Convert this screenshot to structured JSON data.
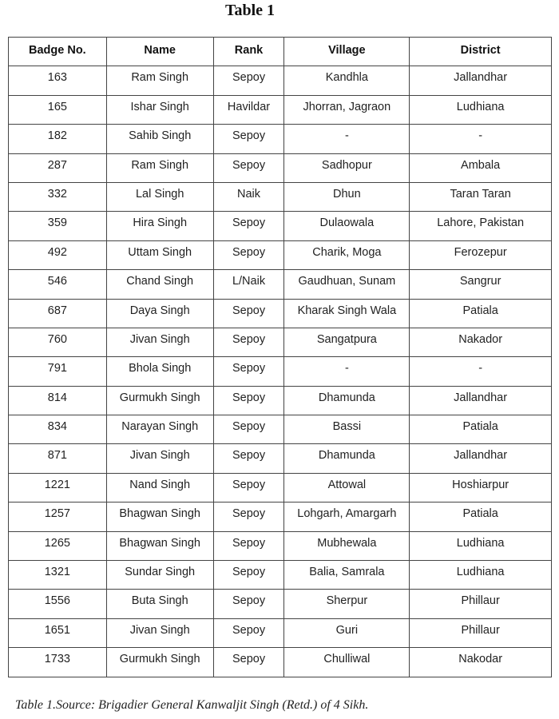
{
  "title": "Table 1",
  "columns": [
    "Badge No.",
    "Name",
    "Rank",
    "Village",
    "District"
  ],
  "rows": [
    [
      "163",
      "Ram Singh",
      "Sepoy",
      "Kandhla",
      "Jallandhar"
    ],
    [
      "165",
      "Ishar Singh",
      "Havildar",
      "Jhorran, Jagraon",
      "Ludhiana"
    ],
    [
      "182",
      "Sahib Singh",
      "Sepoy",
      "-",
      "-"
    ],
    [
      "287",
      "Ram Singh",
      "Sepoy",
      "Sadhopur",
      "Ambala"
    ],
    [
      "332",
      "Lal Singh",
      "Naik",
      "Dhun",
      "Taran Taran"
    ],
    [
      "359",
      "Hira Singh",
      "Sepoy",
      "Dulaowala",
      "Lahore, Pakistan"
    ],
    [
      "492",
      "Uttam Singh",
      "Sepoy",
      "Charik, Moga",
      "Ferozepur"
    ],
    [
      "546",
      "Chand Singh",
      "L/Naik",
      "Gaudhuan, Sunam",
      "Sangrur"
    ],
    [
      "687",
      "Daya Singh",
      "Sepoy",
      "Kharak Singh Wala",
      "Patiala"
    ],
    [
      "760",
      "Jivan Singh",
      "Sepoy",
      "Sangatpura",
      "Nakador"
    ],
    [
      "791",
      "Bhola Singh",
      "Sepoy",
      "-",
      "-"
    ],
    [
      "814",
      "Gurmukh Singh",
      "Sepoy",
      "Dhamunda",
      "Jallandhar"
    ],
    [
      "834",
      "Narayan Singh",
      "Sepoy",
      "Bassi",
      "Patiala"
    ],
    [
      "871",
      "Jivan Singh",
      "Sepoy",
      "Dhamunda",
      "Jallandhar"
    ],
    [
      "1221",
      "Nand Singh",
      "Sepoy",
      "Attowal",
      "Hoshiarpur"
    ],
    [
      "1257",
      "Bhagwan Singh",
      "Sepoy",
      "Lohgarh, Amargarh",
      "Patiala"
    ],
    [
      "1265",
      "Bhagwan Singh",
      "Sepoy",
      "Mubhewala",
      "Ludhiana"
    ],
    [
      "1321",
      "Sundar Singh",
      "Sepoy",
      "Balia, Samrala",
      "Ludhiana"
    ],
    [
      "1556",
      "Buta Singh",
      "Sepoy",
      "Sherpur",
      "Phillaur"
    ],
    [
      "1651",
      "Jivan Singh",
      "Sepoy",
      "Guri",
      "Phillaur"
    ],
    [
      "1733",
      "Gurmukh Singh",
      "Sepoy",
      "Chulliwal",
      "Nakodar"
    ]
  ],
  "caption": "Table 1.Source: Brigadier General Kanwaljit Singh (Retd.) of 4 Sikh."
}
